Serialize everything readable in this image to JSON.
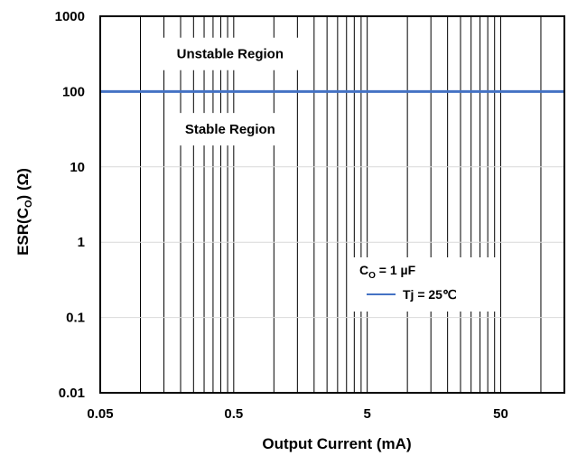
{
  "chart_data": {
    "type": "line",
    "title": "",
    "xlabel": "Output Current (mA)",
    "ylabel_main": "ESR(C",
    "ylabel_sub": "O",
    "ylabel_tail": ") (Ω)",
    "x_scale": "log",
    "y_scale": "log",
    "xlim": [
      0.05,
      150
    ],
    "ylim": [
      0.01,
      1000
    ],
    "x_ticks": [
      {
        "value": 0.05,
        "label": "0.05"
      },
      {
        "value": 0.5,
        "label": "0.5"
      },
      {
        "value": 5,
        "label": "5"
      },
      {
        "value": 50,
        "label": "50"
      }
    ],
    "y_ticks": [
      {
        "value": 0.01,
        "label": "0.01"
      },
      {
        "value": 0.1,
        "label": "0.1"
      },
      {
        "value": 1,
        "label": "1"
      },
      {
        "value": 10,
        "label": "10"
      },
      {
        "value": 100,
        "label": "100"
      },
      {
        "value": 1000,
        "label": "1000"
      }
    ],
    "x_minor_gridlines": [
      0.1,
      0.15,
      0.2,
      0.25,
      0.3,
      0.35,
      0.4,
      0.45,
      1,
      1.5,
      2,
      2.5,
      3,
      3.5,
      4,
      4.5,
      10,
      15,
      20,
      25,
      30,
      35,
      40,
      45,
      100
    ],
    "grid": true,
    "series": [
      {
        "name": "Tj = 25℃",
        "color": "#4472c4",
        "x": [
          0.05,
          150
        ],
        "y": [
          100,
          100
        ]
      }
    ],
    "legend": {
      "placement": "lower-right",
      "heading_main": "C",
      "heading_sub": "O",
      "heading_tail": " = 1 µF",
      "entry": "Tj = 25℃"
    },
    "annotations": [
      {
        "text": "Unstable Region",
        "x": 0.47,
        "y": 316
      },
      {
        "text": "Stable Region",
        "x": 0.47,
        "y": 31.6
      }
    ]
  },
  "colors": {
    "series": "#4472c4",
    "grid": "#000000",
    "axis": "#000000",
    "background": "#ffffff"
  }
}
